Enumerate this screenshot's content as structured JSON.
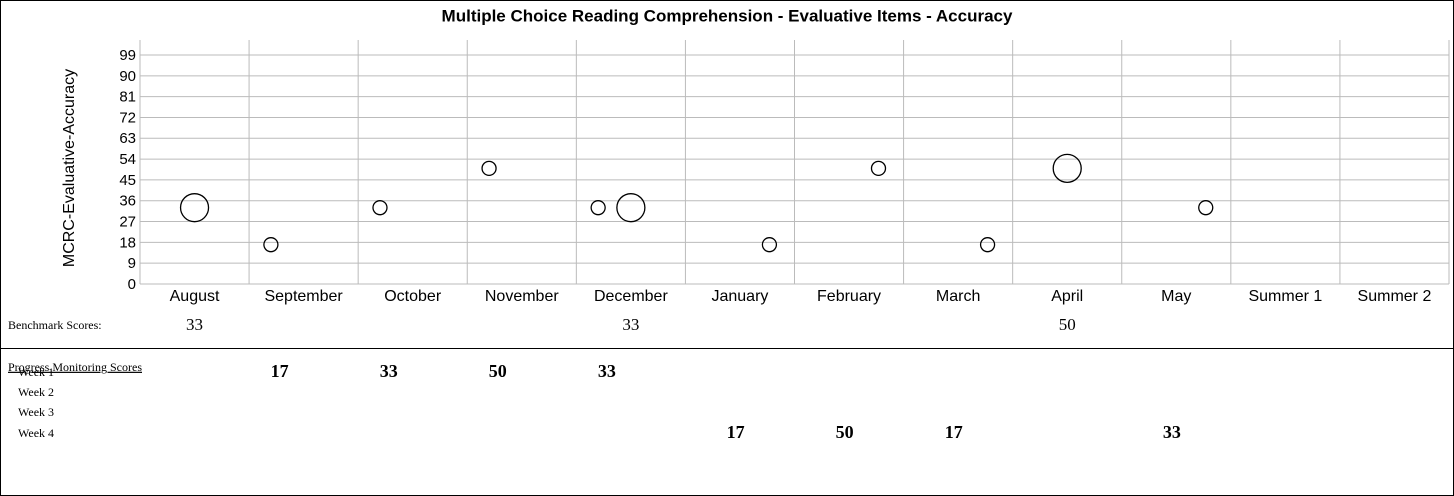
{
  "chart_data": {
    "type": "scatter",
    "title": "Multiple Choice Reading Comprehension - Evaluative Items - Accuracy",
    "y_label": "MCRC-Evaluative-Accuracy",
    "categories": [
      "August",
      "September",
      "October",
      "November",
      "December",
      "January",
      "February",
      "March",
      "April",
      "May",
      "Summer 1",
      "Summer 2"
    ],
    "ylim": [
      0,
      99
    ],
    "yticks": [
      0,
      9,
      18,
      27,
      36,
      45,
      54,
      63,
      72,
      81,
      90,
      99
    ],
    "grid": true,
    "color": "#000000",
    "series": [
      {
        "name": "Benchmark Scores:",
        "values": [
          33,
          null,
          null,
          null,
          33,
          null,
          null,
          null,
          50,
          null,
          null,
          null
        ]
      },
      {
        "name": "Week 1",
        "values": [
          null,
          17,
          33,
          50,
          33,
          null,
          null,
          null,
          null,
          null,
          null,
          null
        ]
      },
      {
        "name": "Week 2",
        "values": [
          null,
          null,
          null,
          null,
          null,
          null,
          null,
          null,
          null,
          null,
          null,
          null
        ]
      },
      {
        "name": "Week 3",
        "values": [
          null,
          null,
          null,
          null,
          null,
          null,
          null,
          null,
          null,
          null,
          null,
          null
        ]
      },
      {
        "name": "Week 4",
        "values": [
          null,
          null,
          null,
          null,
          null,
          17,
          50,
          17,
          null,
          33,
          null,
          null
        ]
      }
    ]
  },
  "progress_title": "Progress Monitoring Scores"
}
